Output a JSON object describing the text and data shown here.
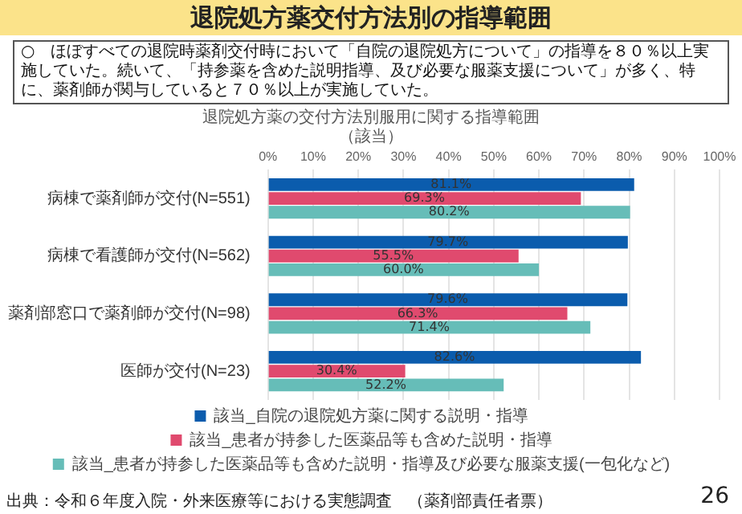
{
  "chart_data": {
    "type": "bar",
    "orientation": "horizontal",
    "title": "退院処方薬交付方法別の指導範囲",
    "subtitle": "退院処方薬の交付方法別服用に関する指導範囲",
    "annotations": [
      "○　ほぼすべての退院時薬剤交付時において「自院の退院処方について」の指導を８０％以上実施していた。続いて、「持参薬を含めた説明指導、及び必要な服薬支援について」が多く、特に、薬剤師が関与していると７０％以上が実施していた。",
      "（該当）",
      "出典：令和６年度入院・外来医療等における実態調査　（薬剤部責任者票）",
      "26"
    ],
    "categories": [
      "病棟で薬剤師が交付(N=551)",
      "病棟で看護師が交付(N=562)",
      "薬剤部窓口で薬剤師が交付(N=98)",
      "医師が交付(N=23)"
    ],
    "series": [
      {
        "name": "該当_自院の退院処方薬に関する説明・指導",
        "color": "#0b5cad",
        "values": [
          81.1,
          79.7,
          79.6,
          82.6
        ],
        "value_labels": [
          "81.1%",
          "79.7%",
          "79.6%",
          "82.6%"
        ]
      },
      {
        "name": "該当_患者が持参した医薬品等も含めた説明・指導",
        "color": "#e04a6e",
        "values": [
          69.3,
          55.5,
          66.3,
          30.4
        ],
        "value_labels": [
          "69.3%",
          "55.5%",
          "66.3%",
          "30.4%"
        ]
      },
      {
        "name": "該当_患者が持参した医薬品等も含めた説明・指導及び必要な服薬支援(一包化など)",
        "color": "#66bdb8",
        "values": [
          80.2,
          60.0,
          71.4,
          52.2
        ],
        "value_labels": [
          "80.2%",
          "60.0%",
          "71.4%",
          "52.2%"
        ]
      }
    ],
    "xlim": [
      0,
      100
    ],
    "xticks": [
      {
        "value": 0,
        "label": "0%"
      },
      {
        "value": 10,
        "label": "10%"
      },
      {
        "value": 20,
        "label": "20%"
      },
      {
        "value": 30,
        "label": "30%"
      },
      {
        "value": 40,
        "label": "40%"
      },
      {
        "value": 50,
        "label": "50%"
      },
      {
        "value": 60,
        "label": "60%"
      },
      {
        "value": 70,
        "label": "70%"
      },
      {
        "value": 80,
        "label": "80%"
      },
      {
        "value": 90,
        "label": "90%"
      },
      {
        "value": 100,
        "label": "100%"
      }
    ],
    "grid": "x",
    "legend": "bottom"
  }
}
